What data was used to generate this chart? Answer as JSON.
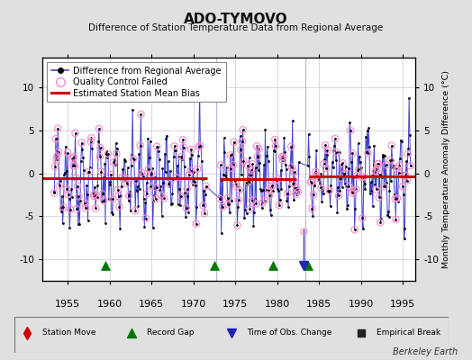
{
  "title": "ADO-TYMOVO",
  "subtitle": "Difference of Station Temperature Data from Regional Average",
  "ylabel": "Monthly Temperature Anomaly Difference (°C)",
  "xlim": [
    1952.0,
    1996.5
  ],
  "ylim": [
    -12.5,
    13.5
  ],
  "yticks": [
    -10,
    -5,
    0,
    5,
    10
  ],
  "xticks": [
    1955,
    1960,
    1965,
    1970,
    1975,
    1980,
    1985,
    1990,
    1995
  ],
  "background_color": "#e0e0e0",
  "plot_bg_color": "#ffffff",
  "grid_color": "#c8c8d8",
  "line_color": "#4444cc",
  "dot_color": "#000000",
  "qc_color": "#ff88cc",
  "bias_color": "#cc0000",
  "vline_color": "#9999cc",
  "record_gap_color": "#007700",
  "obs_change_color": "#2222bb",
  "station_move_color": "#cc0000",
  "empirical_break_color": "#222222",
  "bias_segments": [
    {
      "x_start": 1952.0,
      "x_end": 1971.7,
      "y": -0.5
    },
    {
      "x_start": 1973.2,
      "x_end": 1982.3,
      "y": -0.65
    },
    {
      "x_start": 1983.8,
      "x_end": 1996.5,
      "y": -0.35
    }
  ],
  "record_gaps": [
    1959.5,
    1972.5,
    1979.5,
    1983.7
  ],
  "obs_changes": [
    1983.2
  ],
  "vlines": [
    1972.7,
    1983.4
  ],
  "y_marker": -10.7,
  "seed": 42
}
